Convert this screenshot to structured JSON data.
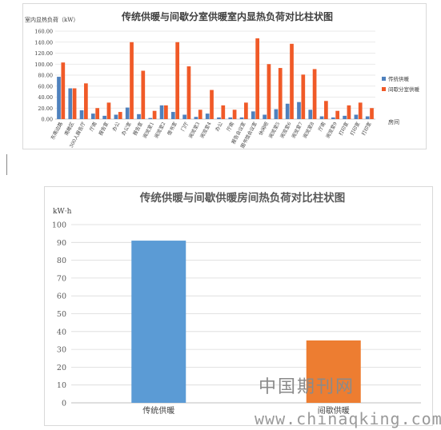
{
  "chart_data": [
    {
      "type": "bar",
      "title": "传统供暖与间歇分室供暖室内显热负荷对比柱状图",
      "ylabel": "室内显热负荷（kW）",
      "xlabel": "房间",
      "ylim": [
        0,
        160
      ],
      "yticks": [
        "0.00",
        "20.00",
        "40.00",
        "60.00",
        "80.00",
        "100.00",
        "120.00",
        "140.00",
        "160.00"
      ],
      "grid": true,
      "legend_position": "right",
      "categories": [
        "东南边路",
        "南敞区",
        "300人报告厅",
        "厅南",
        "报告室",
        "办公",
        "办公室",
        "报告室",
        "阅览室1",
        "阅览室2",
        "借书室",
        "门厅",
        "阅览室3",
        "阅览室4",
        "办公",
        "厅南",
        "报告会议室",
        "图书馆会议室",
        "休闲吧",
        "阅览室5",
        "阅览室6",
        "阅览室7",
        "阅览室8",
        "厅南",
        "阅览室9",
        "打印室",
        "打印室",
        "打印室"
      ],
      "series": [
        {
          "name": "传统供暖",
          "color": "#4f81bd",
          "values": [
            77,
            56,
            16,
            10,
            6,
            8,
            21,
            9,
            2,
            25,
            13,
            8,
            4,
            10,
            3,
            3,
            3,
            14,
            8,
            18,
            28,
            31,
            17,
            5,
            3,
            6,
            8,
            5
          ]
        },
        {
          "name": "间歇分室供暖",
          "color": "#f05a28",
          "values": [
            103,
            56,
            65,
            20,
            30,
            13,
            140,
            88,
            15,
            25,
            140,
            96,
            17,
            53,
            25,
            17,
            30,
            147,
            100,
            93,
            137,
            81,
            91,
            33,
            15,
            25,
            30,
            20
          ]
        }
      ]
    },
    {
      "type": "bar",
      "title": "传统供暖与间歇供暖房间热负荷对比柱状图",
      "ylabel": "kW·h",
      "ylim": [
        0,
        100
      ],
      "yticks": [
        "0",
        "10",
        "20",
        "30",
        "40",
        "50",
        "60",
        "70",
        "80",
        "90",
        "100"
      ],
      "grid": true,
      "categories": [
        "传统供暖",
        "间歇供暖"
      ],
      "values": [
        91,
        35
      ],
      "colors": [
        "#5b9bd5",
        "#ed7d31"
      ]
    }
  ],
  "watermark": {
    "cn": "中国期刊网",
    "url": "www.chinaqking.com"
  }
}
